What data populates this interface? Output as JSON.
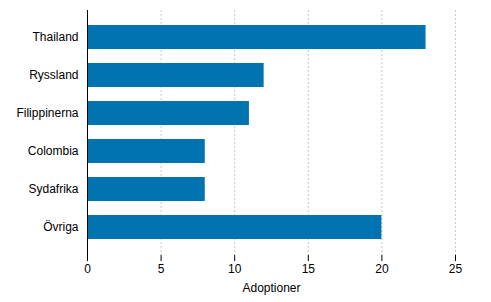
{
  "chart_data": {
    "type": "bar",
    "orientation": "horizontal",
    "categories": [
      "Thailand",
      "Ryssland",
      "Filippinerna",
      "Colombia",
      "Sydafrika",
      "Övriga"
    ],
    "values": [
      23,
      12,
      11,
      8,
      8,
      20
    ],
    "color": "#0073b0",
    "xlabel": "Adoptioner",
    "xlim": [
      0,
      25
    ],
    "xticks": [
      0,
      5,
      10,
      15,
      20,
      25
    ],
    "grid": true
  }
}
